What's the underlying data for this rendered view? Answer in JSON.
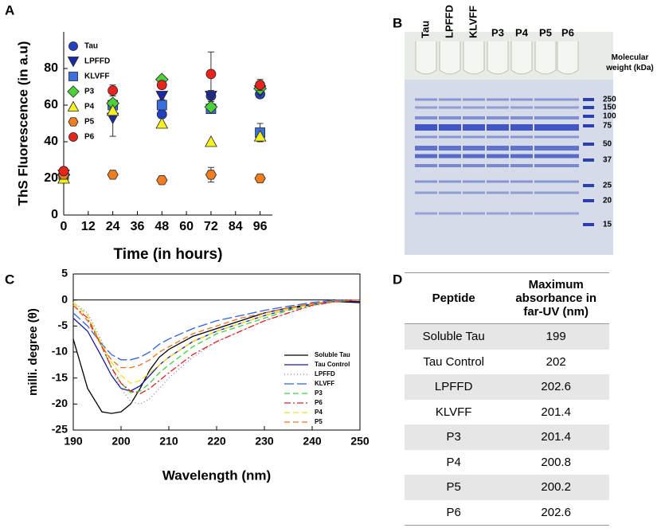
{
  "chart_data": [
    {
      "type": "scatter",
      "panel": "A",
      "x_label": "Time (in hours)",
      "y_label": "ThS Fluorescence (in a.u)",
      "x": [
        0,
        24,
        48,
        72,
        96
      ],
      "xlim": [
        0,
        102
      ],
      "xticks": [
        0,
        12,
        24,
        36,
        48,
        60,
        72,
        84,
        96
      ],
      "ylim": [
        0,
        100
      ],
      "yticks": [
        0,
        20,
        40,
        60,
        80
      ],
      "legend": "upper left",
      "grid": false,
      "series": [
        {
          "name": "Tau",
          "color": "#2340c0",
          "marker": "circle",
          "values": [
            22,
            60,
            55,
            65,
            66
          ]
        },
        {
          "name": "LPFFD",
          "color": "#1a2aa0",
          "marker": "triangle-down",
          "values": [
            22,
            53,
            65,
            65,
            68
          ],
          "errors": [
            1,
            10,
            2,
            3,
            2
          ]
        },
        {
          "name": "KLVFF",
          "color": "#3a6fe0",
          "marker": "square",
          "values": [
            22,
            60,
            60,
            58,
            45
          ],
          "errors": [
            1,
            2,
            2,
            2,
            5
          ]
        },
        {
          "name": "P3",
          "color": "#4cd13a",
          "marker": "diamond",
          "values": [
            22,
            61,
            74,
            59,
            69
          ]
        },
        {
          "name": "P4",
          "color": "#f5f020",
          "marker": "triangle-up",
          "values": [
            20,
            57,
            50,
            40,
            43
          ]
        },
        {
          "name": "P5",
          "color": "#f07d20",
          "marker": "hexagon",
          "values": [
            22,
            22,
            19,
            22,
            20
          ],
          "errors": [
            1,
            1,
            1,
            4,
            1
          ]
        },
        {
          "name": "P6",
          "color": "#e8231e",
          "marker": "circle",
          "values": [
            24,
            68,
            71,
            77,
            71
          ],
          "errors": [
            1,
            3,
            1,
            12,
            3
          ]
        }
      ]
    },
    {
      "type": "line",
      "panel": "C",
      "x_label": "Wavelength (nm)",
      "y_label": "milli. degree (θ)",
      "x": [
        190,
        193,
        196,
        198,
        200,
        202,
        204,
        206,
        208,
        210,
        215,
        220,
        225,
        230,
        235,
        240,
        245,
        250
      ],
      "xlim": [
        190,
        250
      ],
      "xticks": [
        190,
        200,
        210,
        220,
        230,
        240,
        250
      ],
      "ylim": [
        -25,
        5
      ],
      "yticks": [
        -25,
        -20,
        -15,
        -10,
        -5,
        0,
        5
      ],
      "legend": "lower right",
      "grid": false,
      "series": [
        {
          "name": "Soluble Tau",
          "color": "#000000",
          "dash": "solid",
          "values": [
            -7.5,
            -17,
            -21.5,
            -21.8,
            -21.5,
            -20,
            -17,
            -13.5,
            -11,
            -9.5,
            -7,
            -5.5,
            -4,
            -2.5,
            -1.5,
            -0.8,
            -0.3,
            -0.5
          ]
        },
        {
          "name": "Tau Control",
          "color": "#1a1aa0",
          "dash": "solid",
          "values": [
            -3.5,
            -6,
            -11,
            -14.5,
            -17,
            -17.5,
            -16.5,
            -14.5,
            -12.5,
            -11,
            -8,
            -6,
            -4.5,
            -3,
            -1.8,
            -0.8,
            -0.2,
            -0.3
          ]
        },
        {
          "name": "LPFFD",
          "color": "#a070c0",
          "dash": "dotted",
          "values": [
            -0.5,
            -2.5,
            -8,
            -13,
            -17,
            -19.5,
            -20,
            -19,
            -17,
            -15,
            -11,
            -8,
            -6,
            -4,
            -2.5,
            -1.2,
            -0.3,
            0
          ]
        },
        {
          "name": "KLVFF",
          "color": "#3060e0",
          "dash": "long-dash",
          "values": [
            -2.5,
            -5,
            -8.5,
            -10.5,
            -11.5,
            -11.5,
            -11,
            -10,
            -8.5,
            -7.5,
            -5.5,
            -4,
            -3,
            -2,
            -1.2,
            -0.5,
            0,
            0
          ]
        },
        {
          "name": "P3",
          "color": "#40d040",
          "dash": "dash",
          "values": [
            -0.5,
            -3,
            -9,
            -13,
            -16,
            -17.8,
            -17.5,
            -16,
            -14,
            -12.5,
            -9,
            -6.5,
            -5,
            -3.5,
            -2,
            -1,
            -0.3,
            0
          ]
        },
        {
          "name": "P6",
          "color": "#e02020",
          "dash": "dash-dot",
          "values": [
            -1,
            -3.5,
            -9,
            -13,
            -16,
            -17.5,
            -18,
            -17,
            -15.5,
            -14,
            -10.5,
            -8,
            -6,
            -4,
            -2.5,
            -1,
            -0.3,
            0
          ]
        },
        {
          "name": "P4",
          "color": "#f0e020",
          "dash": "dash",
          "values": [
            -0.5,
            -3,
            -8.5,
            -12,
            -14.5,
            -16,
            -15.5,
            -14,
            -12.5,
            -11,
            -8,
            -6,
            -4.5,
            -3,
            -1.8,
            -0.8,
            -0.2,
            0
          ]
        },
        {
          "name": "P5",
          "color": "#f07020",
          "dash": "dash",
          "values": [
            -1,
            -4,
            -9,
            -11.5,
            -13,
            -13,
            -12.5,
            -11.5,
            -10,
            -9,
            -6.5,
            -5,
            -3.5,
            -2.5,
            -1.5,
            -0.7,
            -0.2,
            0
          ]
        }
      ]
    }
  ],
  "gel": {
    "panel": "B",
    "lanes": [
      "Tau",
      "LPFFD",
      "KLVFF",
      "P3",
      "P4",
      "P5",
      "P6"
    ],
    "marker_title": "Molecular weight (kDa)",
    "marker_kda": [
      250,
      150,
      100,
      75,
      50,
      37,
      25,
      20,
      15
    ]
  },
  "table": {
    "panel": "D",
    "header": [
      "Peptide",
      "Maximum absorbance in far-UV (nm)"
    ],
    "rows": [
      [
        "Soluble Tau",
        199
      ],
      [
        "Tau Control",
        202
      ],
      [
        "LPFFD",
        202.6
      ],
      [
        "KLVFF",
        201.4
      ],
      [
        "P3",
        201.4
      ],
      [
        "P4",
        200.8
      ],
      [
        "P5",
        200.2
      ],
      [
        "P6",
        202.6
      ]
    ]
  }
}
